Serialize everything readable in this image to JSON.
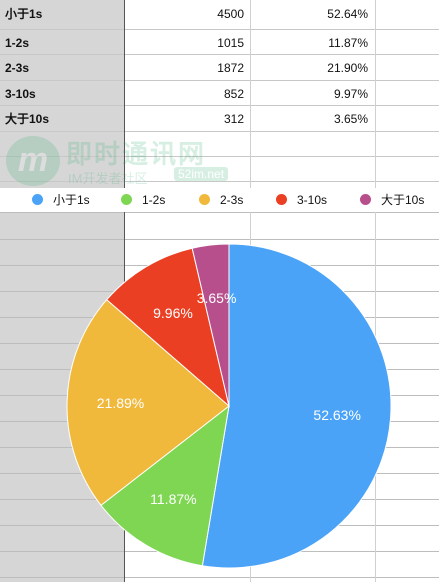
{
  "table": {
    "rows": [
      {
        "label": "小于1s",
        "count": "4500",
        "percent": "52.64%"
      },
      {
        "label": "1-2s",
        "count": "1015",
        "percent": "11.87%"
      },
      {
        "label": "2-3s",
        "count": "1872",
        "percent": "21.90%"
      },
      {
        "label": "3-10s",
        "count": "852",
        "percent": "9.97%"
      },
      {
        "label": "大于10s",
        "count": "312",
        "percent": "3.65%"
      }
    ]
  },
  "watermark": {
    "logo_letter": "m",
    "title": "即时通讯网",
    "subtitle": "IM开发者社区",
    "url": "52im.net"
  },
  "chart_data": {
    "type": "pie",
    "categories": [
      "小于1s",
      "1-2s",
      "2-3s",
      "3-10s",
      "大于10s"
    ],
    "values": [
      52.63,
      11.87,
      21.89,
      9.96,
      3.65
    ],
    "labels": [
      "52.63%",
      "11.87%",
      "21.89%",
      "9.96%",
      "3.65%"
    ],
    "colors": [
      "#4aa3f7",
      "#7fd653",
      "#f0b93c",
      "#eb3f24",
      "#b84f8d"
    ],
    "legend_position": "top",
    "title": ""
  }
}
